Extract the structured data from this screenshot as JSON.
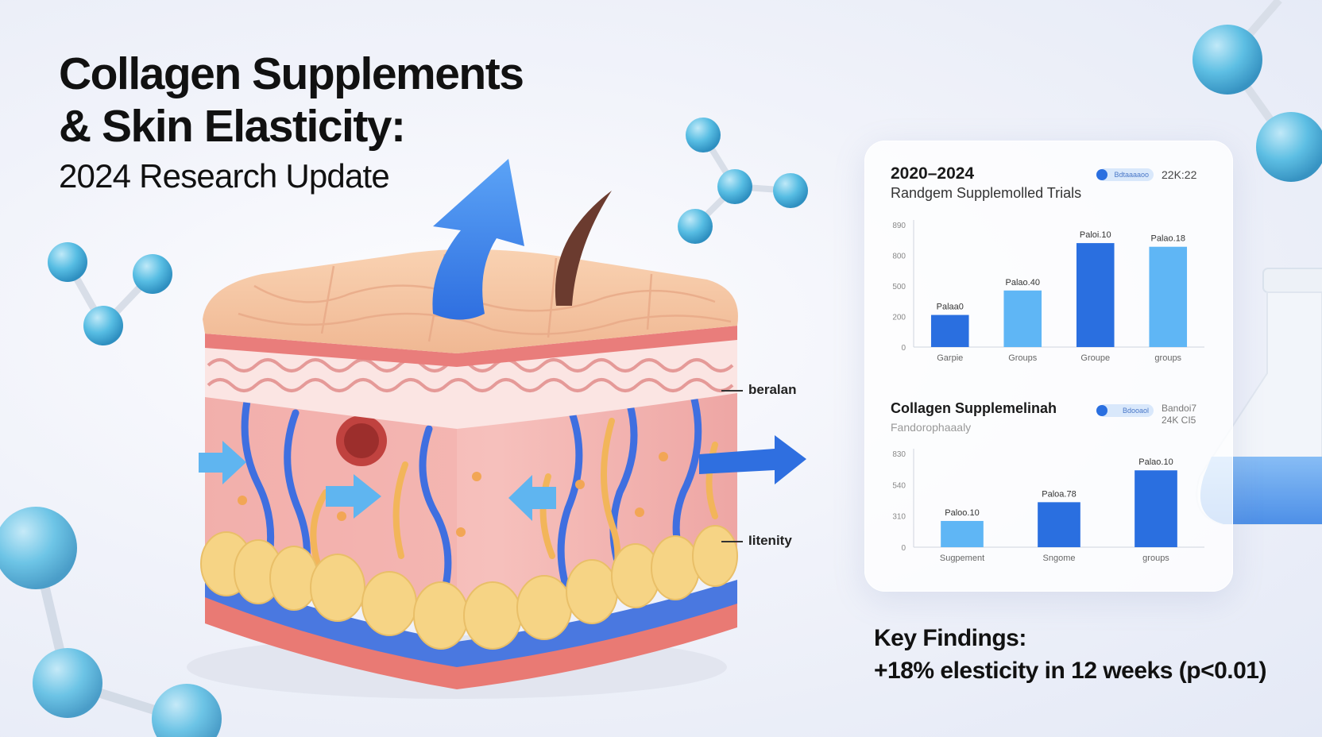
{
  "title": {
    "line1": "Collagen Supplements",
    "line2": "& Skin Elasticity:",
    "subtitle": "2024 Research Update"
  },
  "illustration": {
    "label_upper": "beralan",
    "label_lower": "Iitenity",
    "colors": {
      "epidermis": "#f6c9a7",
      "dermis": "#f2a7a6",
      "fat": "#f6d78a",
      "vessel": "#3f6fe0",
      "arrow": "#3b7ee8"
    }
  },
  "chart_data": [
    {
      "type": "bar",
      "title": "2020–2024",
      "subtitle": "Randgem Supplemolled Trials",
      "legend": {
        "label": "Bdtaaaaoo",
        "meta": "22K:22"
      },
      "categories": [
        "Garpie",
        "Groups",
        "Groupe",
        "groups"
      ],
      "data_labels": [
        "Palaa0",
        "Palao.40",
        "Paloi.10",
        "Palao.18"
      ],
      "values": [
        105,
        185,
        340,
        328
      ],
      "bar_colors": [
        "#2a6fe0",
        "#5fb6f5",
        "#2a6fe0",
        "#5fb6f5"
      ],
      "yticks": [
        "0",
        "200",
        "500",
        "800",
        "890"
      ],
      "ylim": [
        0,
        400
      ]
    },
    {
      "type": "bar",
      "title": "Collagen Supplemelinah",
      "subtitle": "Fandorophaaaly",
      "legend": {
        "label": "Bdooaol",
        "meta_line1": "Bandoi7",
        "meta_line2": "24K CI5"
      },
      "categories": [
        "Sugpement",
        "Sngome",
        "groups"
      ],
      "data_labels": [
        "Paloo.10",
        "Paloa.78",
        "Palao.10"
      ],
      "values": [
        70,
        120,
        205
      ],
      "bar_colors": [
        "#5fb6f5",
        "#2a6fe0",
        "#2a6fe0"
      ],
      "yticks": [
        "0",
        "310",
        "540",
        "830"
      ],
      "ylim": [
        0,
        250
      ]
    }
  ],
  "key_findings": {
    "label": "Key Findings:",
    "text": "+18% elesticity in 12 weeks (p<0.01)"
  }
}
